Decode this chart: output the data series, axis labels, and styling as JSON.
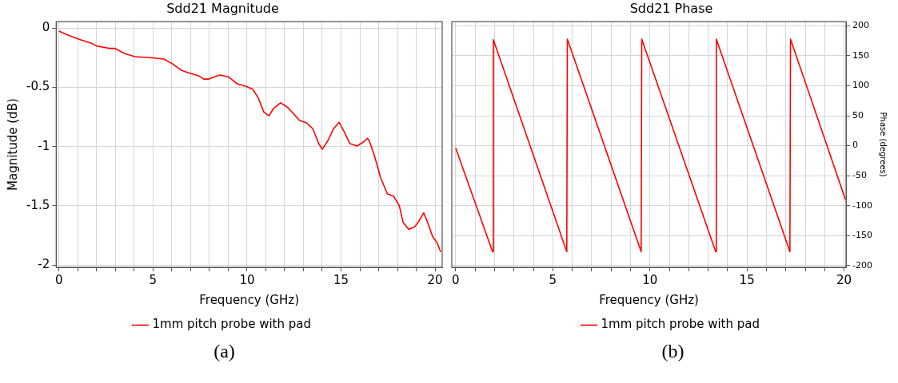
{
  "chart_data": [
    {
      "type": "line",
      "title": "Sdd21 Magnitude",
      "xlabel": "Frequency (GHz)",
      "ylabel": "Magnitude (dB)",
      "legend": "bottom",
      "grid": true,
      "xlim": [
        -0.15,
        20.38
      ],
      "ylim": [
        -2.02,
        0.055
      ],
      "xticks": [
        0,
        {
          "value": 1,
          "label": null
        },
        {
          "value": 2,
          "label": null
        },
        {
          "value": 3,
          "label": null
        },
        {
          "value": 4,
          "label": null
        },
        5,
        {
          "value": 6,
          "label": null
        },
        {
          "value": 7,
          "label": null
        },
        {
          "value": 8,
          "label": null
        },
        {
          "value": 9,
          "label": null
        },
        10,
        {
          "value": 11,
          "label": null
        },
        {
          "value": 12,
          "label": null
        },
        {
          "value": 13,
          "label": null
        },
        {
          "value": 14,
          "label": null
        },
        15,
        {
          "value": 16,
          "label": null
        },
        {
          "value": 17,
          "label": null
        },
        {
          "value": 18,
          "label": null
        },
        {
          "value": 19,
          "label": null
        },
        20
      ],
      "yticks": [
        {
          "value": -2,
          "label": "-2"
        },
        {
          "value": -1.5,
          "label": "-1.5"
        },
        {
          "value": -1,
          "label": "-1"
        },
        {
          "value": -0.5,
          "label": "-0.5"
        },
        0
      ],
      "annotations": [
        "(a)"
      ],
      "series": [
        {
          "name": "1mm pitch probe with pad",
          "color": "#ff0000",
          "x": [
            0,
            0.5,
            1.1,
            1.7,
            2.0,
            2.65,
            2.96,
            3.5,
            4.04,
            4.96,
            5.57,
            6.03,
            6.5,
            6.95,
            7.4,
            7.7,
            7.95,
            8.18,
            8.57,
            9.0,
            9.48,
            10.0,
            10.3,
            10.6,
            10.9,
            11.17,
            11.4,
            11.79,
            12.17,
            12.8,
            13.17,
            13.5,
            13.8,
            14.0,
            14.3,
            14.6,
            14.9,
            15.17,
            15.47,
            15.85,
            16.2,
            16.4,
            16.5,
            16.8,
            17.1,
            17.46,
            17.8,
            18.1,
            18.3,
            18.6,
            18.9,
            19.1,
            19.4,
            19.6,
            19.87,
            20.1,
            20.3
          ],
          "values": [
            -0.024,
            -0.06,
            -0.096,
            -0.125,
            -0.15,
            -0.17,
            -0.17,
            -0.215,
            -0.24,
            -0.25,
            -0.26,
            -0.3,
            -0.355,
            -0.38,
            -0.4,
            -0.43,
            -0.43,
            -0.415,
            -0.395,
            -0.41,
            -0.47,
            -0.495,
            -0.515,
            -0.59,
            -0.71,
            -0.74,
            -0.68,
            -0.63,
            -0.67,
            -0.78,
            -0.8,
            -0.85,
            -0.97,
            -1.023,
            -0.95,
            -0.85,
            -0.795,
            -0.875,
            -0.975,
            -0.995,
            -0.96,
            -0.93,
            -0.95,
            -1.09,
            -1.26,
            -1.4,
            -1.42,
            -1.5,
            -1.64,
            -1.7,
            -1.68,
            -1.64,
            -1.56,
            -1.64,
            -1.76,
            -1.81,
            -1.89
          ]
        }
      ]
    },
    {
      "type": "line",
      "title": "Sdd21 Phase",
      "xlabel": "Frequency (GHz)",
      "y2label": "Phase (degrees)",
      "legend": "bottom",
      "grid": true,
      "xlim": [
        -0.2,
        20.1
      ],
      "y2lim": [
        -203,
        207
      ],
      "xticks": [
        0,
        {
          "value": 1,
          "label": null
        },
        {
          "value": 2,
          "label": null
        },
        {
          "value": 3,
          "label": null
        },
        {
          "value": 4,
          "label": null
        },
        5,
        {
          "value": 6,
          "label": null
        },
        {
          "value": 7,
          "label": null
        },
        {
          "value": 8,
          "label": null
        },
        {
          "value": 9,
          "label": null
        },
        10,
        {
          "value": 11,
          "label": null
        },
        {
          "value": 12,
          "label": null
        },
        {
          "value": 13,
          "label": null
        },
        {
          "value": 14,
          "label": null
        },
        15,
        {
          "value": 16,
          "label": null
        },
        {
          "value": 17,
          "label": null
        },
        {
          "value": 18,
          "label": null
        },
        {
          "value": 19,
          "label": null
        },
        20
      ],
      "y2ticks": [
        -200,
        -150,
        -100,
        -50,
        0,
        50,
        100,
        150,
        200
      ],
      "annotations": [
        "(b)"
      ],
      "series": [
        {
          "name": "1mm pitch probe with pad",
          "color": "#ff0000",
          "axis": "y2",
          "x": [
            0,
            1.9,
            1.94,
            5.72,
            5.75,
            9.55,
            9.58,
            13.39,
            13.42,
            17.21,
            17.24,
            20.07
          ],
          "values": [
            -4,
            -177,
            177,
            -177,
            178,
            -177,
            178,
            -177,
            178,
            -177,
            178,
            -90
          ]
        }
      ]
    }
  ]
}
